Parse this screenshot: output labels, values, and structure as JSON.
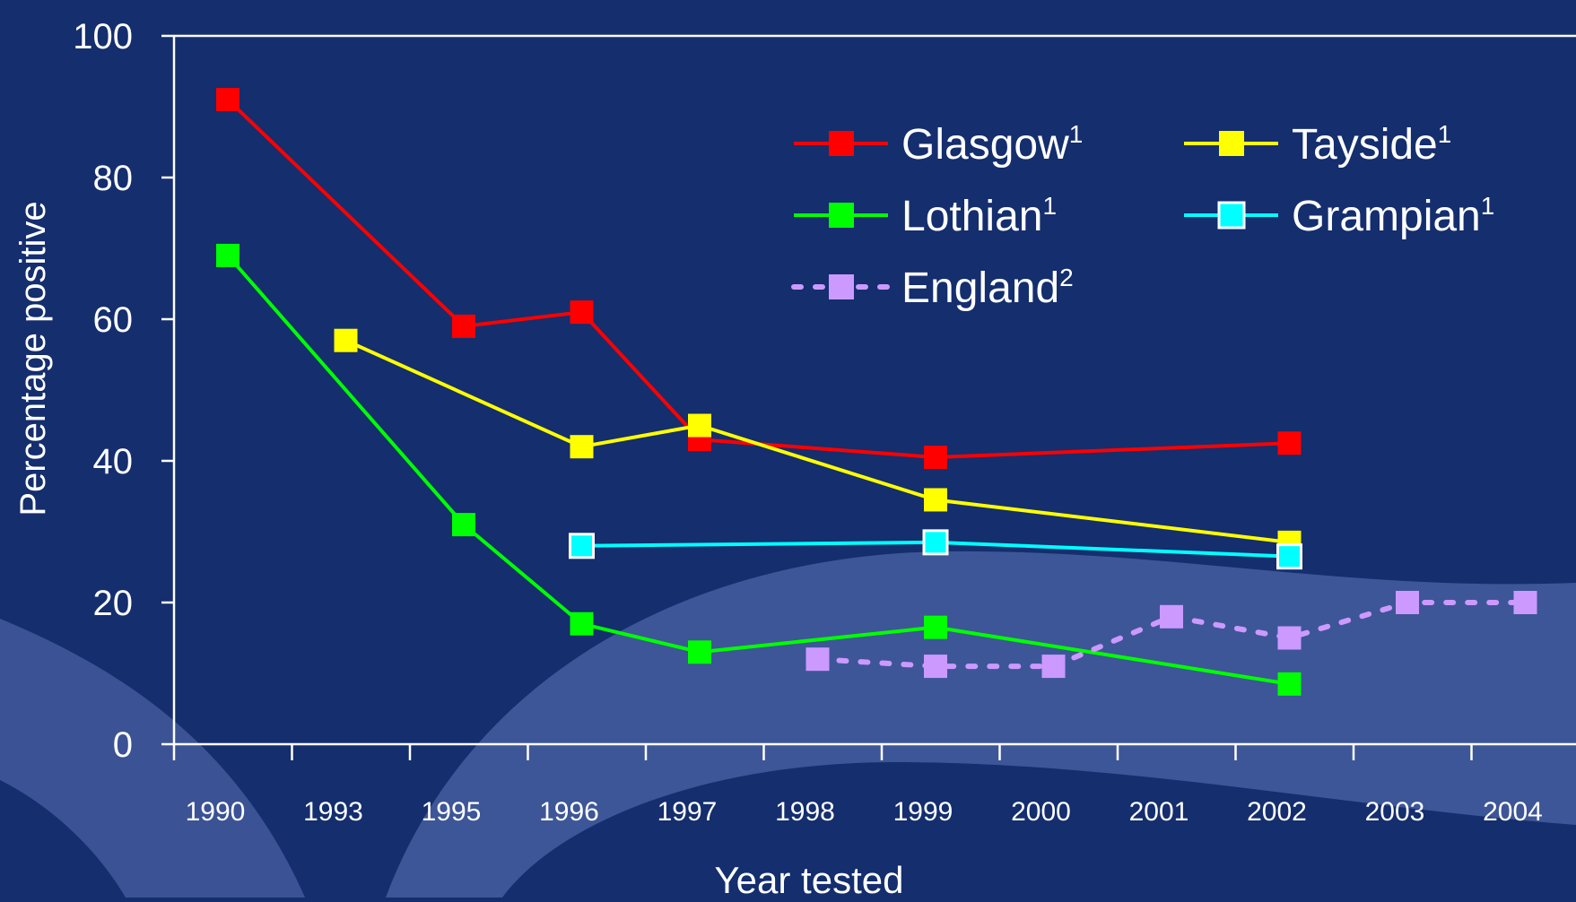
{
  "chart_data": {
    "type": "line",
    "title": "",
    "xlabel": "Year tested",
    "ylabel": "Percentage positive",
    "ylim": [
      0,
      100
    ],
    "y_ticks": [
      0,
      20,
      40,
      60,
      80,
      100
    ],
    "categories": [
      "1990",
      "1993",
      "1995",
      "1996",
      "1997",
      "1998",
      "1999",
      "2000",
      "2001",
      "2002",
      "2003",
      "2004"
    ],
    "grid": false,
    "legend_position": "top-right",
    "series": [
      {
        "name": "Glasgow",
        "superscript": "1",
        "color": "#ff0000",
        "line_style": "solid",
        "marker": "filled-square",
        "points": [
          {
            "x": "1990",
            "y": 91
          },
          {
            "x": "1995",
            "y": 59
          },
          {
            "x": "1996",
            "y": 61
          },
          {
            "x": "1997",
            "y": 43
          },
          {
            "x": "1999",
            "y": 40.5
          },
          {
            "x": "2002",
            "y": 42.5
          }
        ]
      },
      {
        "name": "Tayside",
        "superscript": "1",
        "color": "#ffff00",
        "line_style": "solid",
        "marker": "filled-square",
        "points": [
          {
            "x": "1993",
            "y": 57
          },
          {
            "x": "1996",
            "y": 42
          },
          {
            "x": "1997",
            "y": 45
          },
          {
            "x": "1999",
            "y": 34.5
          },
          {
            "x": "2002",
            "y": 28.5
          }
        ]
      },
      {
        "name": "Lothian",
        "superscript": "1",
        "color": "#00ff00",
        "line_style": "solid",
        "marker": "filled-square",
        "points": [
          {
            "x": "1990",
            "y": 69
          },
          {
            "x": "1995",
            "y": 31
          },
          {
            "x": "1996",
            "y": 17
          },
          {
            "x": "1997",
            "y": 13
          },
          {
            "x": "1999",
            "y": 16.5
          },
          {
            "x": "2002",
            "y": 8.5
          }
        ]
      },
      {
        "name": "Grampian",
        "superscript": "1",
        "color": "#00ffff",
        "line_style": "solid",
        "marker": "outlined-square",
        "points": [
          {
            "x": "1996",
            "y": 28
          },
          {
            "x": "1999",
            "y": 28.5
          },
          {
            "x": "2002",
            "y": 26.5
          }
        ]
      },
      {
        "name": "England",
        "superscript": "2",
        "color": "#cc99ff",
        "line_style": "dotted",
        "marker": "filled-square",
        "points": [
          {
            "x": "1998",
            "y": 12
          },
          {
            "x": "1999",
            "y": 11
          },
          {
            "x": "2000",
            "y": 11
          },
          {
            "x": "2001",
            "y": 18
          },
          {
            "x": "2002",
            "y": 15
          },
          {
            "x": "2003",
            "y": 20
          },
          {
            "x": "2004",
            "y": 20
          }
        ]
      }
    ]
  }
}
